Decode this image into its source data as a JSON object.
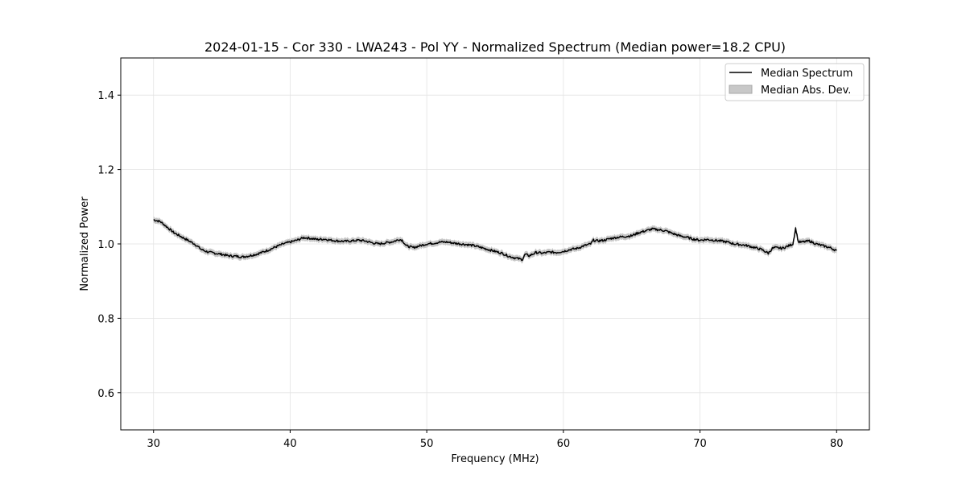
{
  "chart_data": {
    "type": "line",
    "title": "2024-01-15 - Cor 330 - LWA243 - Pol YY - Normalized Spectrum (Median power=18.2 CPU)",
    "xlabel": "Frequency (MHz)",
    "ylabel": "Normalized Power",
    "xlim": [
      27.6,
      82.4
    ],
    "ylim": [
      0.5,
      1.5
    ],
    "xticks": [
      30,
      40,
      50,
      60,
      70,
      80
    ],
    "yticks": [
      0.6,
      0.8,
      1.0,
      1.2,
      1.4
    ],
    "xtick_labels": [
      "30",
      "40",
      "50",
      "60",
      "70",
      "80"
    ],
    "ytick_labels": [
      "0.6",
      "0.8",
      "1.0",
      "1.2",
      "1.4"
    ],
    "grid": true,
    "legend_position": "top-right",
    "legend": [
      "Median Spectrum",
      "Median Abs. Dev."
    ],
    "series": [
      {
        "name": "Median Spectrum",
        "color": "#000000",
        "x": [
          30,
          30.5,
          31,
          31.5,
          32,
          32.5,
          33,
          33.5,
          34,
          34.5,
          35,
          35.5,
          36,
          36.5,
          37,
          37.5,
          38,
          38.5,
          39,
          39.5,
          40,
          40.5,
          41,
          41.5,
          42,
          42.5,
          43,
          43.5,
          44,
          44.5,
          45,
          45.5,
          46,
          46.5,
          47,
          47.5,
          48,
          48.2,
          48.5,
          49,
          49.5,
          50,
          50.5,
          51,
          51.5,
          52,
          52.5,
          53,
          53.5,
          54,
          54.5,
          55,
          55.5,
          56,
          56.5,
          57,
          57.2,
          57.5,
          58,
          58.5,
          59,
          59.5,
          60,
          60.5,
          61,
          61.5,
          62,
          62.2,
          62.5,
          63,
          63.5,
          64,
          64.5,
          65,
          65.5,
          66,
          66.5,
          67,
          67.5,
          68,
          68.5,
          69,
          69.5,
          70,
          70.5,
          71,
          71.5,
          72,
          72.5,
          73,
          73.5,
          74,
          74.5,
          75,
          75.3,
          75.5,
          76,
          76.5,
          76.8,
          77,
          77.2,
          77.5,
          78,
          78.5,
          79,
          79.5,
          80
        ],
        "values": [
          1.065,
          1.06,
          1.045,
          1.03,
          1.02,
          1.01,
          1.0,
          0.985,
          0.978,
          0.975,
          0.972,
          0.968,
          0.967,
          0.965,
          0.968,
          0.972,
          0.978,
          0.985,
          0.993,
          1.0,
          1.005,
          1.01,
          1.017,
          1.015,
          1.012,
          1.013,
          1.01,
          1.008,
          1.007,
          1.008,
          1.01,
          1.008,
          1.003,
          1.0,
          1.003,
          1.006,
          1.012,
          1.01,
          0.995,
          0.99,
          0.995,
          1.0,
          1.002,
          1.005,
          1.005,
          1.002,
          1.0,
          0.998,
          0.995,
          0.99,
          0.985,
          0.98,
          0.975,
          0.967,
          0.962,
          0.958,
          0.972,
          0.968,
          0.977,
          0.975,
          0.978,
          0.977,
          0.98,
          0.985,
          0.988,
          0.995,
          1.0,
          1.01,
          1.008,
          1.01,
          1.015,
          1.018,
          1.02,
          1.022,
          1.03,
          1.035,
          1.04,
          1.038,
          1.035,
          1.028,
          1.022,
          1.018,
          1.013,
          1.01,
          1.012,
          1.01,
          1.008,
          1.005,
          1.0,
          0.998,
          0.995,
          0.99,
          0.985,
          0.975,
          0.988,
          0.99,
          0.988,
          0.995,
          1.0,
          1.042,
          1.005,
          1.005,
          1.008,
          1.0,
          0.995,
          0.99,
          0.982
        ]
      },
      {
        "name": "Median Abs. Dev.",
        "color": "#c8c8c8",
        "deviation": 0.008
      }
    ]
  }
}
